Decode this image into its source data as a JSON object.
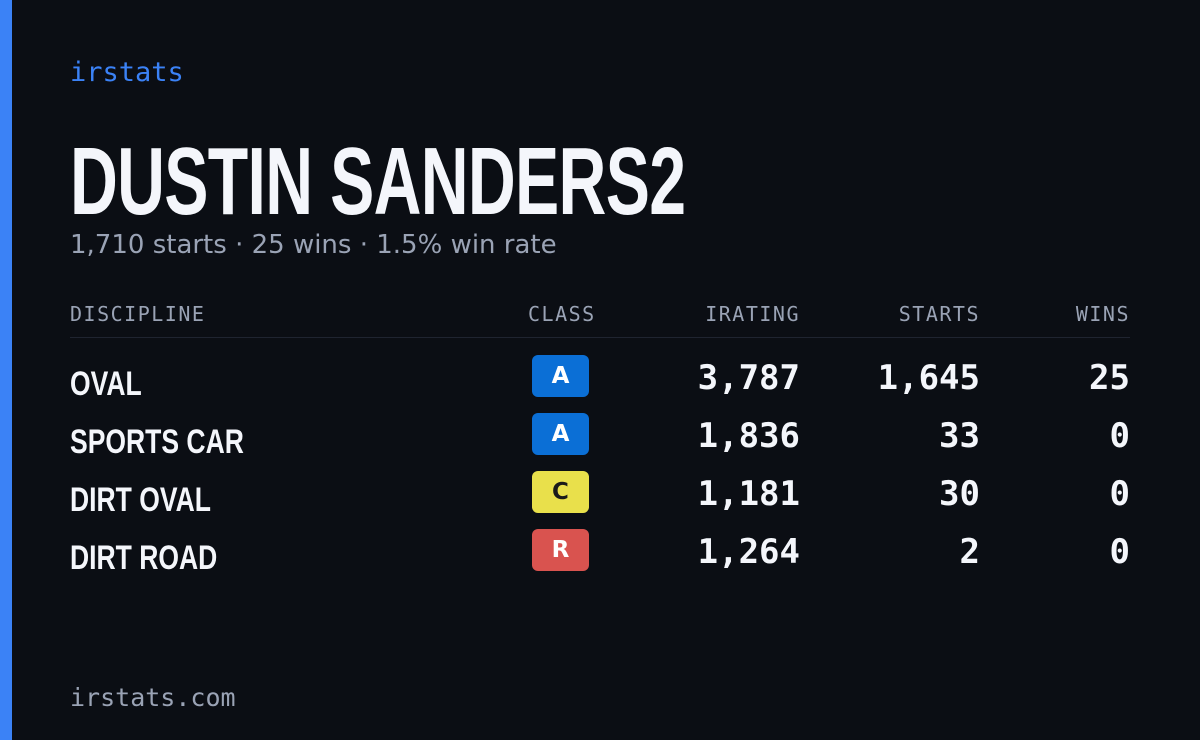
{
  "brand": "irstats",
  "name": "DUSTIN SANDERS2",
  "summary": "1,710 starts · 25 wins · 1.5% win rate",
  "table": {
    "headers": [
      "DISCIPLINE",
      "CLASS",
      "IRATING",
      "STARTS",
      "WINS"
    ],
    "rows": [
      {
        "discipline": "OVAL",
        "class": "A",
        "class_color": "#0b6fd6",
        "class_text_color": "#ffffff",
        "irating": "3,787",
        "starts": "1,645",
        "wins": "25"
      },
      {
        "discipline": "SPORTS CAR",
        "class": "A",
        "class_color": "#0b6fd6",
        "class_text_color": "#ffffff",
        "irating": "1,836",
        "starts": "33",
        "wins": "0"
      },
      {
        "discipline": "DIRT OVAL",
        "class": "C",
        "class_color": "#e9e04b",
        "class_text_color": "#1a1a1a",
        "irating": "1,181",
        "starts": "30",
        "wins": "0"
      },
      {
        "discipline": "DIRT ROAD",
        "class": "R",
        "class_color": "#d9534f",
        "class_text_color": "#ffffff",
        "irating": "1,264",
        "starts": "2",
        "wins": "0"
      }
    ]
  },
  "footer": "irstats.com"
}
